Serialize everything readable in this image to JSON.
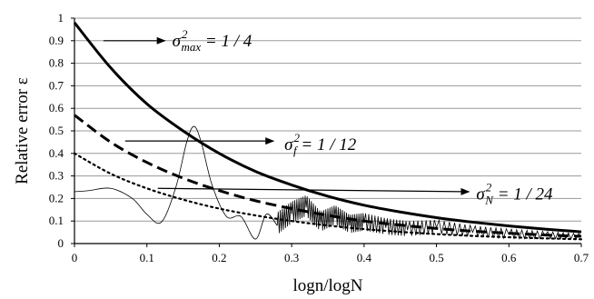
{
  "chart_data": {
    "type": "line",
    "title": "",
    "xlabel": "logn/logN",
    "ylabel": "Relative error ε",
    "xlim": [
      0,
      0.7
    ],
    "ylim": [
      0,
      1
    ],
    "x_ticks": [
      "0",
      "0.1",
      "0.2",
      "0.3",
      "0.4",
      "0.5",
      "0.6",
      "0.7"
    ],
    "y_ticks": [
      "0",
      "0.1",
      "0.2",
      "0.3",
      "0.4",
      "0.5",
      "0.6",
      "0.7",
      "0.8",
      "0.9",
      "1"
    ],
    "grid": "horizontal",
    "legend": "none",
    "series": [
      {
        "style": "solid-thick",
        "color": "#000000",
        "x": [
          0,
          0.05,
          0.1,
          0.15,
          0.2,
          0.25,
          0.3,
          0.35,
          0.4,
          0.45,
          0.5,
          0.55,
          0.6,
          0.65,
          0.7
        ],
        "y": [
          0.98,
          0.78,
          0.62,
          0.5,
          0.4,
          0.32,
          0.26,
          0.21,
          0.17,
          0.14,
          0.115,
          0.095,
          0.078,
          0.064,
          0.052
        ]
      },
      {
        "style": "dashed-thick",
        "color": "#000000",
        "x": [
          0,
          0.05,
          0.1,
          0.15,
          0.2,
          0.25,
          0.3,
          0.35,
          0.4,
          0.45,
          0.5,
          0.55,
          0.6,
          0.65,
          0.7
        ],
        "y": [
          0.57,
          0.45,
          0.36,
          0.29,
          0.235,
          0.19,
          0.155,
          0.125,
          0.1,
          0.082,
          0.067,
          0.055,
          0.046,
          0.038,
          0.032
        ]
      },
      {
        "style": "dotted",
        "color": "#000000",
        "x": [
          0,
          0.05,
          0.1,
          0.15,
          0.2,
          0.25,
          0.3,
          0.35,
          0.4,
          0.45,
          0.5,
          0.55,
          0.6,
          0.65,
          0.7
        ],
        "y": [
          0.4,
          0.31,
          0.245,
          0.195,
          0.155,
          0.125,
          0.1,
          0.08,
          0.064,
          0.052,
          0.042,
          0.034,
          0.028,
          0.023,
          0.019
        ]
      },
      {
        "style": "solid-thin-noisy",
        "color": "#000000",
        "x": [
          0,
          0.02,
          0.05,
          0.08,
          0.1,
          0.12,
          0.14,
          0.155,
          0.165,
          0.175,
          0.19,
          0.21,
          0.23,
          0.25,
          0.265,
          0.28,
          0.3,
          0.32,
          0.34,
          0.36,
          0.38,
          0.4,
          0.43,
          0.46,
          0.5,
          0.55,
          0.6,
          0.65,
          0.7
        ],
        "y": [
          0.23,
          0.235,
          0.245,
          0.2,
          0.13,
          0.095,
          0.25,
          0.45,
          0.52,
          0.45,
          0.26,
          0.12,
          0.12,
          0.02,
          0.13,
          0.08,
          0.13,
          0.16,
          0.09,
          0.12,
          0.08,
          0.09,
          0.07,
          0.06,
          0.07,
          0.05,
          0.04,
          0.035,
          0.03
        ]
      }
    ],
    "annotations": [
      {
        "base": "σ",
        "sup": "2",
        "sub": "max",
        "text": " = 1 / 4",
        "arrow_from": [
          0.04,
          0.9
        ],
        "arrow_to": [
          0.125,
          0.9
        ],
        "label_at": [
          0.135,
          0.9
        ]
      },
      {
        "base": "σ",
        "sup": "2",
        "sub": "f",
        "text": " = 1 / 12",
        "arrow_from": [
          0.07,
          0.455
        ],
        "arrow_to": [
          0.275,
          0.455
        ],
        "label_at": [
          0.29,
          0.44
        ]
      },
      {
        "base": "σ",
        "sup": "2",
        "sub": "N",
        "text": " = 1 / 24",
        "arrow_from": [
          0.115,
          0.245
        ],
        "arrow_to": [
          0.545,
          0.23
        ],
        "label_at": [
          0.555,
          0.22
        ]
      }
    ]
  }
}
